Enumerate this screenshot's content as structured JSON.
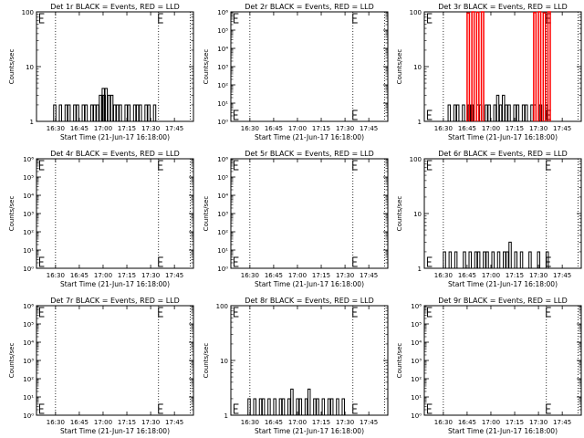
{
  "chart_data": [
    {
      "type": "line",
      "title": "Det 1r BLACK = Events, RED = LLD",
      "xlabel": "Start Time (21-Jun-17 16:18:00)",
      "ylabel": "Counts/sec",
      "yscale": "log",
      "ylim": [
        1,
        100
      ],
      "yticks": [
        "1",
        "10",
        "100"
      ],
      "xlim": [
        16.3,
        17.95
      ],
      "xticks": [
        "16:30",
        "16:45",
        "17:00",
        "17:15",
        "17:30",
        "17:45"
      ],
      "vlines": [
        16.5,
        17.583,
        17.917
      ],
      "event_markers": [
        16.333,
        17.583
      ],
      "series": [
        {
          "color": "#000000",
          "x": [
            16.48,
            16.51,
            16.54,
            16.57,
            16.6,
            16.63,
            16.66,
            16.69,
            16.72,
            16.75,
            16.78,
            16.81,
            16.84,
            16.87,
            16.9,
            16.93,
            16.96,
            16.99,
            17.0,
            17.02,
            17.05,
            17.08,
            17.11,
            17.14,
            17.17,
            17.2,
            17.23,
            17.26,
            17.29,
            17.32,
            17.35,
            17.38,
            17.41,
            17.44,
            17.47,
            17.5,
            17.53
          ],
          "values": [
            2,
            1,
            2,
            1,
            2,
            2,
            1,
            2,
            2,
            1,
            2,
            2,
            1,
            2,
            2,
            2,
            3,
            4,
            3,
            4,
            3,
            3,
            2,
            2,
            2,
            1,
            2,
            2,
            1,
            2,
            2,
            2,
            1,
            2,
            2,
            1,
            2
          ]
        }
      ]
    },
    {
      "type": "line",
      "title": "Det 2r BLACK = Events, RED = LLD",
      "xlabel": "Start Time (21-Jun-17 16:18:00)",
      "ylabel": "Counts/sec",
      "yscale": "log",
      "ylim": [
        1,
        1000000
      ],
      "yticks": [
        "10⁰",
        "10¹",
        "10²",
        "10³",
        "10⁴",
        "10⁵",
        "10⁶"
      ],
      "xlim": [
        16.3,
        17.95
      ],
      "xticks": [
        "16:30",
        "16:45",
        "17:00",
        "17:15",
        "17:30",
        "17:45"
      ],
      "vlines": [
        16.5,
        17.583,
        17.917
      ],
      "event_markers": [
        16.333,
        17.583
      ],
      "series": []
    },
    {
      "type": "line",
      "title": "Det 3r BLACK = Events, RED = LLD",
      "xlabel": "Start Time (21-Jun-17 16:18:00)",
      "ylabel": "Counts/sec",
      "yscale": "log",
      "ylim": [
        1,
        100
      ],
      "yticks": [
        "1",
        "10",
        "100"
      ],
      "xlim": [
        16.3,
        17.95
      ],
      "xticks": [
        "16:30",
        "16:45",
        "17:00",
        "17:15",
        "17:30",
        "17:45"
      ],
      "vlines": [
        16.5,
        17.583,
        17.917
      ],
      "event_markers": [
        16.333,
        17.583
      ],
      "series": [
        {
          "color": "#000000",
          "x": [
            16.52,
            16.55,
            16.58,
            16.61,
            16.64,
            16.67,
            16.7,
            16.73,
            16.76,
            16.79,
            16.82,
            16.85,
            16.88,
            16.91,
            16.94,
            16.97,
            17.0,
            17.03,
            17.06,
            17.09,
            17.12,
            17.15,
            17.18,
            17.21,
            17.24,
            17.27,
            17.3,
            17.33,
            17.36,
            17.39,
            17.42,
            17.45,
            17.48,
            17.51,
            17.54,
            17.57
          ],
          "values": [
            1,
            2,
            1,
            2,
            2,
            1,
            2,
            1,
            2,
            2,
            1,
            2,
            2,
            1,
            2,
            2,
            1,
            2,
            3,
            2,
            3,
            2,
            2,
            1,
            2,
            2,
            1,
            2,
            2,
            1,
            2,
            2,
            1,
            2,
            1,
            2
          ]
        },
        {
          "color": "#ff0000",
          "x": [
            16.75,
            16.8,
            16.85,
            16.9,
            17.45,
            17.5,
            17.55,
            17.6
          ],
          "values": [
            95,
            100,
            98,
            100,
            97,
            100,
            96,
            100
          ]
        }
      ]
    },
    {
      "type": "line",
      "title": "Det 4r BLACK = Events, RED = LLD",
      "xlabel": "Start Time (21-Jun-17 16:18:00)",
      "ylabel": "Counts/sec",
      "yscale": "log",
      "ylim": [
        1,
        1000000
      ],
      "yticks": [
        "10⁰",
        "10¹",
        "10²",
        "10³",
        "10⁴",
        "10⁵",
        "10⁶"
      ],
      "xlim": [
        16.3,
        17.95
      ],
      "xticks": [
        "16:30",
        "16:45",
        "17:00",
        "17:15",
        "17:30",
        "17:45"
      ],
      "vlines": [
        16.5,
        17.583,
        17.917
      ],
      "event_markers": [
        16.333,
        17.583
      ],
      "series": []
    },
    {
      "type": "line",
      "title": "Det 5r BLACK = Events, RED = LLD",
      "xlabel": "Start Time (21-Jun-17 16:18:00)",
      "ylabel": "Counts/sec",
      "yscale": "log",
      "ylim": [
        1,
        1000000
      ],
      "yticks": [
        "10⁰",
        "10¹",
        "10²",
        "10³",
        "10⁴",
        "10⁵",
        "10⁶"
      ],
      "xlim": [
        16.3,
        17.95
      ],
      "xticks": [
        "16:30",
        "16:45",
        "17:00",
        "17:15",
        "17:30",
        "17:45"
      ],
      "vlines": [
        16.5,
        17.583,
        17.917
      ],
      "event_markers": [
        16.333,
        17.583
      ],
      "series": []
    },
    {
      "type": "line",
      "title": "Det 6r BLACK = Events, RED = LLD",
      "xlabel": "Start Time (21-Jun-17 16:18:00)",
      "ylabel": "Counts/sec",
      "yscale": "log",
      "ylim": [
        1,
        100
      ],
      "yticks": [
        "1",
        "10",
        "100"
      ],
      "xlim": [
        16.3,
        17.95
      ],
      "xticks": [
        "16:30",
        "16:45",
        "17:00",
        "17:15",
        "17:30",
        "17:45"
      ],
      "vlines": [
        16.5,
        17.583,
        17.917
      ],
      "event_markers": [
        16.333,
        17.583
      ],
      "series": [
        {
          "color": "#000000",
          "x": [
            16.47,
            16.5,
            16.53,
            16.56,
            16.59,
            16.62,
            16.65,
            16.68,
            16.71,
            16.74,
            16.77,
            16.8,
            16.83,
            16.86,
            16.89,
            16.92,
            16.95,
            16.98,
            17.01,
            17.04,
            17.07,
            17.1,
            17.13,
            17.16,
            17.19,
            17.22,
            17.25,
            17.28,
            17.31,
            17.34,
            17.37,
            17.4,
            17.43,
            17.46,
            17.49,
            17.52,
            17.55,
            17.58
          ],
          "values": [
            1,
            2,
            1,
            2,
            1,
            2,
            1,
            1,
            2,
            1,
            2,
            1,
            2,
            2,
            1,
            2,
            2,
            1,
            2,
            1,
            2,
            1,
            2,
            2,
            3,
            1,
            2,
            1,
            2,
            1,
            1,
            2,
            1,
            1,
            2,
            1,
            1,
            2
          ]
        }
      ]
    },
    {
      "type": "line",
      "title": "Det 7r BLACK = Events, RED = LLD",
      "xlabel": "Start Time (21-Jun-17 16:18:00)",
      "ylabel": "Counts/sec",
      "yscale": "log",
      "ylim": [
        1,
        1000000
      ],
      "yticks": [
        "10⁰",
        "10¹",
        "10²",
        "10³",
        "10⁴",
        "10⁵",
        "10⁶"
      ],
      "xlim": [
        16.3,
        17.95
      ],
      "xticks": [
        "16:30",
        "16:45",
        "17:00",
        "17:15",
        "17:30",
        "17:45"
      ],
      "vlines": [
        16.5,
        17.583,
        17.917
      ],
      "event_markers": [
        16.333,
        17.583
      ],
      "series": []
    },
    {
      "type": "line",
      "title": "Det 8r BLACK = Events, RED = LLD",
      "xlabel": "Start Time (21-Jun-17 16:18:00)",
      "ylabel": "Counts/sec",
      "yscale": "log",
      "ylim": [
        1,
        100
      ],
      "yticks": [
        "1",
        "10",
        "100"
      ],
      "xlim": [
        16.3,
        17.95
      ],
      "xticks": [
        "16:30",
        "16:45",
        "17:00",
        "17:15",
        "17:30",
        "17:45"
      ],
      "vlines": [
        16.5,
        17.583,
        17.917
      ],
      "event_markers": [
        16.333,
        17.583
      ],
      "series": [
        {
          "color": "#000000",
          "x": [
            16.45,
            16.48,
            16.51,
            16.54,
            16.57,
            16.6,
            16.63,
            16.66,
            16.69,
            16.72,
            16.75,
            16.78,
            16.81,
            16.84,
            16.87,
            16.9,
            16.93,
            16.96,
            16.99,
            17.02,
            17.05,
            17.08,
            17.11,
            17.14,
            17.17,
            17.2,
            17.23,
            17.26,
            17.29,
            17.32,
            17.35,
            17.38,
            17.41,
            17.44,
            17.47,
            17.5
          ],
          "values": [
            1,
            2,
            1,
            2,
            1,
            2,
            2,
            1,
            2,
            1,
            2,
            1,
            2,
            2,
            1,
            2,
            3,
            1,
            2,
            2,
            1,
            2,
            3,
            1,
            2,
            2,
            1,
            2,
            1,
            2,
            2,
            1,
            2,
            1,
            2,
            1
          ]
        }
      ]
    },
    {
      "type": "line",
      "title": "Det 9r BLACK = Events, RED = LLD",
      "xlabel": "Start Time (21-Jun-17 16:18:00)",
      "ylabel": "Counts/sec",
      "yscale": "log",
      "ylim": [
        1,
        1000000
      ],
      "yticks": [
        "10⁰",
        "10¹",
        "10²",
        "10³",
        "10⁴",
        "10⁵",
        "10⁶"
      ],
      "xlim": [
        16.3,
        17.95
      ],
      "xticks": [
        "16:30",
        "16:45",
        "17:00",
        "17:15",
        "17:30",
        "17:45"
      ],
      "vlines": [
        16.5,
        17.583,
        17.917
      ],
      "event_markers": [
        16.333,
        17.583
      ],
      "series": []
    }
  ]
}
